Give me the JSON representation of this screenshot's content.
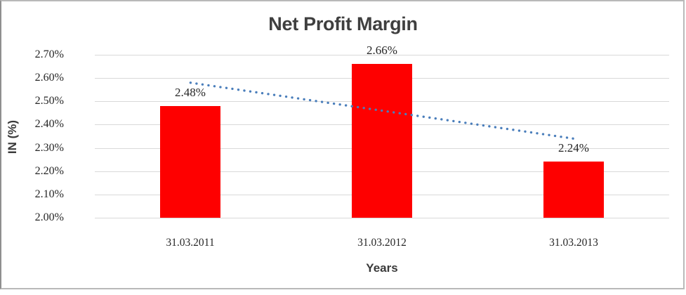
{
  "chart_data": {
    "type": "bar",
    "title": "Net Profit Margin",
    "xlabel": "Years",
    "ylabel": "IN (%)",
    "categories": [
      "31.03.2011",
      "31.03.2012",
      "31.03.2013"
    ],
    "values": [
      2.48,
      2.66,
      2.24
    ],
    "value_labels": [
      "2.48%",
      "2.66%",
      "2.24%"
    ],
    "ylim": [
      2.0,
      2.7
    ],
    "ytick_step": 0.1,
    "ytick_labels": [
      "2.00%",
      "2.10%",
      "2.20%",
      "2.30%",
      "2.40%",
      "2.50%",
      "2.60%",
      "2.70%"
    ],
    "grid": true,
    "legend_position": "none",
    "bar_color": "#fe0000",
    "gridline_color": "#d9d9d9",
    "label_color": "#262626",
    "title_color": "#3f3f3f",
    "trendline": {
      "type": "linear",
      "style": "dotted",
      "color": "#4a7ebb",
      "start_value": 2.58,
      "end_value": 2.34
    }
  }
}
